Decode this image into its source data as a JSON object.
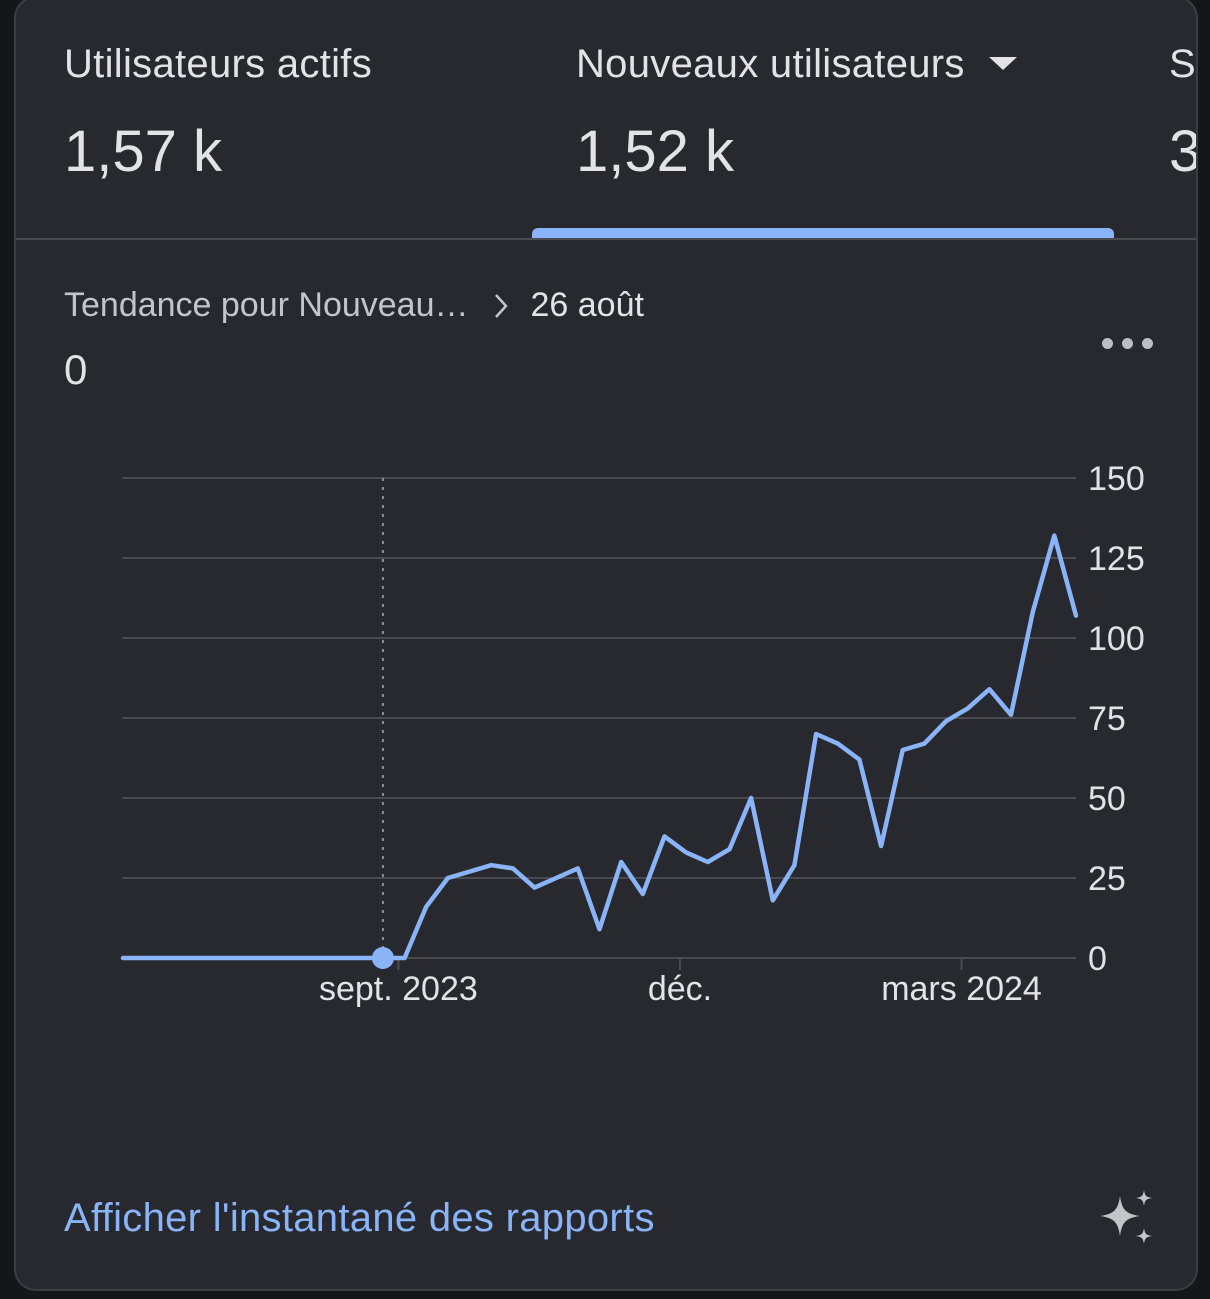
{
  "metrics": [
    {
      "label": "Utilisateurs actifs",
      "value": "1,57 k"
    },
    {
      "label": "Nouveaux utilisateurs",
      "value": "1,52 k"
    },
    {
      "label": "S",
      "value": "3"
    }
  ],
  "selected_metric_index": 1,
  "breadcrumb": {
    "trend_label": "Tendance pour Nouveau…",
    "date": "26 août"
  },
  "selected_value": "0",
  "more_icon": "more-horizontal-icon",
  "footer": {
    "link_label": "Afficher l'instantané des rapports",
    "sparkle_icon": "sparkle-icon"
  },
  "colors": {
    "line": "#8ab4f8",
    "grid": "#4a4b50",
    "text": "#e3e3e6",
    "background": "#28292e"
  },
  "chart_data": {
    "type": "line",
    "x": [
      "2023-06-04",
      "2023-06-11",
      "2023-06-18",
      "2023-06-25",
      "2023-07-02",
      "2023-07-09",
      "2023-07-16",
      "2023-07-23",
      "2023-07-30",
      "2023-08-06",
      "2023-08-13",
      "2023-08-20",
      "2023-08-27",
      "2023-09-03",
      "2023-09-10",
      "2023-09-17",
      "2023-09-24",
      "2023-10-01",
      "2023-10-08",
      "2023-10-15",
      "2023-10-22",
      "2023-10-29",
      "2023-11-05",
      "2023-11-12",
      "2023-11-19",
      "2023-11-26",
      "2023-12-03",
      "2023-12-10",
      "2023-12-17",
      "2023-12-24",
      "2023-12-31",
      "2024-01-07",
      "2024-01-14",
      "2024-01-21",
      "2024-01-28",
      "2024-02-04",
      "2024-02-11",
      "2024-02-18",
      "2024-02-25",
      "2024-03-03",
      "2024-03-10",
      "2024-03-17",
      "2024-03-24",
      "2024-03-31",
      "2024-04-07"
    ],
    "series": [
      {
        "values": [
          0,
          0,
          0,
          0,
          0,
          0,
          0,
          0,
          0,
          0,
          0,
          0,
          0,
          0,
          16,
          25,
          27,
          29,
          28,
          22,
          25,
          28,
          9,
          30,
          20,
          38,
          33,
          30,
          34,
          50,
          18,
          29,
          70,
          67,
          62,
          35,
          65,
          67,
          74,
          78,
          84,
          76,
          108,
          132,
          107
        ]
      }
    ],
    "x_tick_labels": [
      "sept. 2023",
      "déc.",
      "mars 2024"
    ],
    "x_tick_dates": [
      "2023-09-01",
      "2023-12-01",
      "2024-03-01"
    ],
    "y_ticks": [
      0,
      25,
      50,
      75,
      100,
      125,
      150
    ],
    "ylim": [
      0,
      150
    ],
    "highlight": {
      "x": "2023-08-27",
      "y": 0
    },
    "grid": true,
    "y_axis_side": "right"
  }
}
